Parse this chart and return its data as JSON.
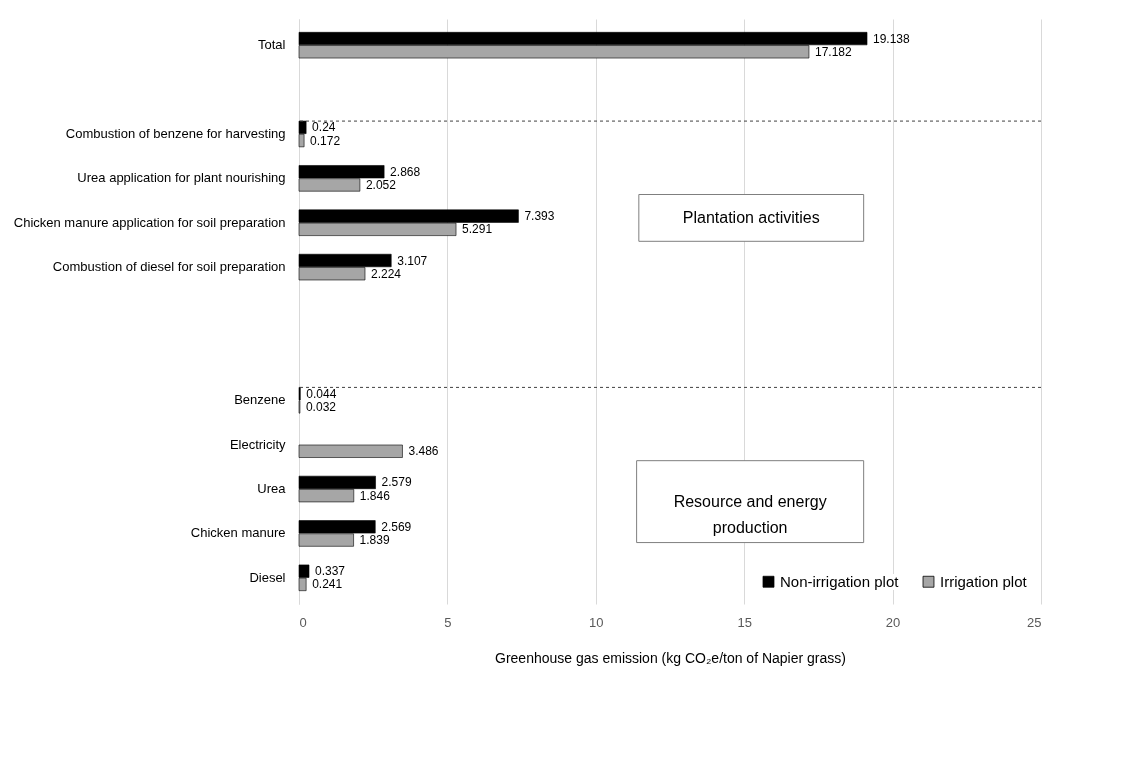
{
  "chart_data": {
    "type": "bar",
    "orientation": "horizontal",
    "xlabel": "Greenhouse gas emission (kg CO₂e/ton of Napier grass)",
    "categories": [
      "Total",
      null,
      "Combustion of benzene for harvesting",
      "Urea application for plant nourishing",
      "Chicken manure  application for soil preparation",
      "Combustion of diesel for soil preparation",
      null,
      null,
      "Benzene",
      "Electricity",
      "Urea",
      "Chicken manure",
      "Diesel"
    ],
    "series": [
      {
        "name": "Non-irrigation plot",
        "color": "#000000",
        "values": [
          19.138,
          null,
          0.24,
          2.868,
          7.393,
          3.107,
          null,
          null,
          0.044,
          null,
          2.579,
          2.569,
          0.337
        ]
      },
      {
        "name": "Irrigation plot",
        "color": "#a6a6a6",
        "values": [
          17.182,
          null,
          0.172,
          2.052,
          5.291,
          2.224,
          null,
          null,
          0.032,
          3.486,
          1.846,
          1.839,
          0.241
        ]
      }
    ],
    "xlim": [
      0,
      25
    ],
    "xticks": [
      0,
      5,
      10,
      15,
      20,
      25
    ],
    "grid": "x",
    "legend": "bottom right",
    "data_labels": true,
    "ref_lines": [
      {
        "axis": "y",
        "value": "Combustion of benzene for harvesting",
        "line_style": "dashed"
      },
      {
        "axis": "y",
        "value": "Benzene",
        "line_style": "dashed"
      }
    ],
    "annotations": [
      "Plantation activities",
      "Resource and energy production"
    ]
  }
}
